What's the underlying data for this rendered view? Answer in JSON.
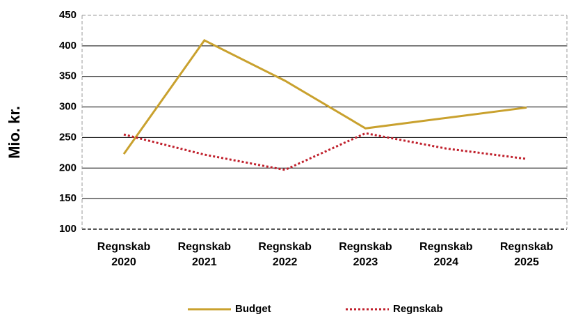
{
  "chart_data": {
    "type": "line",
    "y_label": "Mio. kr.",
    "categories": [
      "Regnskab 2020",
      "Regnskab 2021",
      "Regnskab 2022",
      "Regnskab 2023",
      "Regnskab 2024",
      "Regnskab 2025"
    ],
    "series": [
      {
        "name": "Budget",
        "color": "#c9a12e",
        "style": "solid",
        "values": [
          223,
          409,
          343,
          265,
          282,
          299
        ]
      },
      {
        "name": "Regnskab",
        "color": "#c0202c",
        "style": "dotted",
        "values": [
          255,
          222,
          197,
          257,
          232,
          215
        ]
      }
    ],
    "ylim": [
      100,
      450
    ],
    "yticks": [
      100,
      150,
      200,
      250,
      300,
      350,
      400,
      450
    ],
    "grid": true,
    "legend": "bottom"
  }
}
